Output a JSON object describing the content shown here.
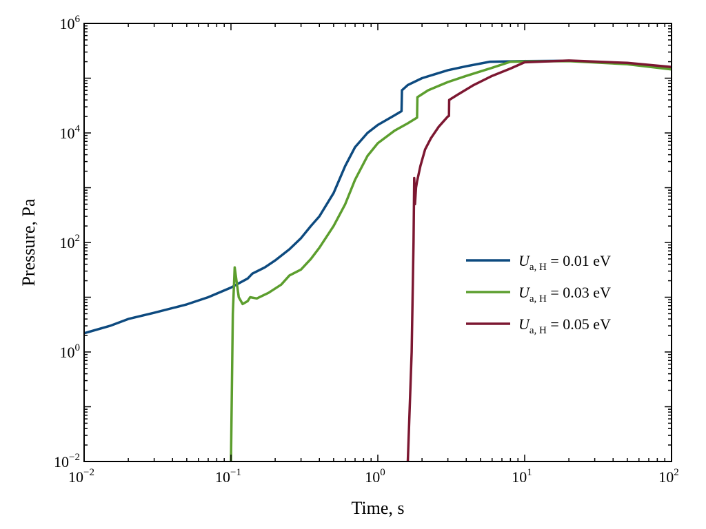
{
  "chart_data": {
    "type": "line",
    "title": "",
    "xlabel": "Time, s",
    "ylabel": "Pressure, Pa",
    "xscale": "log",
    "yscale": "log",
    "xlim": [
      0.01,
      100
    ],
    "ylim": [
      0.01,
      1000000
    ],
    "x_ticks": [
      {
        "value": 0.01,
        "base": "10",
        "exp": "−2"
      },
      {
        "value": 0.1,
        "base": "10",
        "exp": "−1"
      },
      {
        "value": 1,
        "base": "10",
        "exp": "0"
      },
      {
        "value": 10,
        "base": "10",
        "exp": "1"
      },
      {
        "value": 100,
        "base": "10",
        "exp": "2"
      }
    ],
    "y_ticks": [
      {
        "value": 0.01,
        "base": "10",
        "exp": "−2"
      },
      {
        "value": 1,
        "base": "10",
        "exp": "0"
      },
      {
        "value": 100,
        "base": "10",
        "exp": "2"
      },
      {
        "value": 10000,
        "base": "10",
        "exp": "4"
      },
      {
        "value": 1000000,
        "base": "10",
        "exp": "6"
      }
    ],
    "grid": false,
    "legend_position": "center-right",
    "series": [
      {
        "name": "U_a,H = 0.01 eV",
        "legend": {
          "symbol": "U",
          "subscript": "a, H",
          "value_text": " = 0.01 eV"
        },
        "color": "#0d4a7f",
        "points": [
          [
            0.01,
            2.2
          ],
          [
            0.015,
            3.0
          ],
          [
            0.02,
            4.0
          ],
          [
            0.03,
            5.2
          ],
          [
            0.05,
            7.4
          ],
          [
            0.07,
            10.0
          ],
          [
            0.1,
            15.0
          ],
          [
            0.13,
            22.0
          ],
          [
            0.14,
            27.0
          ],
          [
            0.17,
            35.0
          ],
          [
            0.2,
            47.0
          ],
          [
            0.25,
            75.0
          ],
          [
            0.3,
            120.0
          ],
          [
            0.35,
            200.0
          ],
          [
            0.4,
            300.0
          ],
          [
            0.5,
            800.0
          ],
          [
            0.6,
            2500.0
          ],
          [
            0.7,
            5500.0
          ],
          [
            0.85,
            10000.0
          ],
          [
            1.0,
            14000.0
          ],
          [
            1.3,
            21000.0
          ],
          [
            1.45,
            25000.0
          ],
          [
            1.46,
            60000.0
          ],
          [
            1.6,
            75000.0
          ],
          [
            2.0,
            100000.0
          ],
          [
            3.0,
            140000.0
          ],
          [
            4.0,
            165000.0
          ],
          [
            5.8,
            200000.0
          ],
          [
            10.0,
            205000.0
          ],
          [
            20.0,
            208000.0
          ],
          [
            50.0,
            185000.0
          ],
          [
            100.0,
            155000.0
          ]
        ]
      },
      {
        "name": "U_a,H = 0.03 eV",
        "legend": {
          "symbol": "U",
          "subscript": "a, H",
          "value_text": " = 0.03 eV"
        },
        "color": "#5c9e2e",
        "points": [
          [
            0.1,
            0.01
          ],
          [
            0.103,
            5.0
          ],
          [
            0.106,
            35.0
          ],
          [
            0.109,
            20.0
          ],
          [
            0.113,
            10.0
          ],
          [
            0.12,
            7.5
          ],
          [
            0.13,
            8.5
          ],
          [
            0.135,
            10.0
          ],
          [
            0.15,
            9.5
          ],
          [
            0.18,
            12.0
          ],
          [
            0.22,
            17.0
          ],
          [
            0.25,
            25.0
          ],
          [
            0.3,
            32.0
          ],
          [
            0.35,
            50.0
          ],
          [
            0.4,
            80.0
          ],
          [
            0.5,
            200.0
          ],
          [
            0.6,
            500.0
          ],
          [
            0.7,
            1400.0
          ],
          [
            0.85,
            3800.0
          ],
          [
            1.0,
            6500.0
          ],
          [
            1.3,
            11000.0
          ],
          [
            1.6,
            15000.0
          ],
          [
            1.85,
            19000.0
          ],
          [
            1.86,
            45000.0
          ],
          [
            2.2,
            60000.0
          ],
          [
            3.0,
            85000.0
          ],
          [
            4.0,
            110000.0
          ],
          [
            6.0,
            155000.0
          ],
          [
            8.0,
            200000.0
          ],
          [
            10.0,
            202000.0
          ],
          [
            20.0,
            205000.0
          ],
          [
            50.0,
            180000.0
          ],
          [
            100.0,
            145000.0
          ]
        ]
      },
      {
        "name": "U_a,H = 0.05 eV",
        "legend": {
          "symbol": "U",
          "subscript": "a, H",
          "value_text": " = 0.05 eV"
        },
        "color": "#7c1731",
        "points": [
          [
            1.6,
            0.01
          ],
          [
            1.7,
            1.0
          ],
          [
            1.75,
            100.0
          ],
          [
            1.77,
            1500.0
          ],
          [
            1.79,
            500.0
          ],
          [
            1.82,
            1000.0
          ],
          [
            1.85,
            1300.0
          ],
          [
            1.95,
            2500.0
          ],
          [
            2.1,
            5000.0
          ],
          [
            2.3,
            8000.0
          ],
          [
            2.6,
            13000.0
          ],
          [
            3.0,
            20000.0
          ],
          [
            3.05,
            20500.0
          ],
          [
            3.06,
            40000.0
          ],
          [
            3.5,
            50000.0
          ],
          [
            4.5,
            75000.0
          ],
          [
            6.0,
            110000.0
          ],
          [
            8.0,
            150000.0
          ],
          [
            10.0,
            195000.0
          ],
          [
            20.0,
            210000.0
          ],
          [
            50.0,
            190000.0
          ],
          [
            100.0,
            160000.0
          ]
        ]
      }
    ]
  }
}
